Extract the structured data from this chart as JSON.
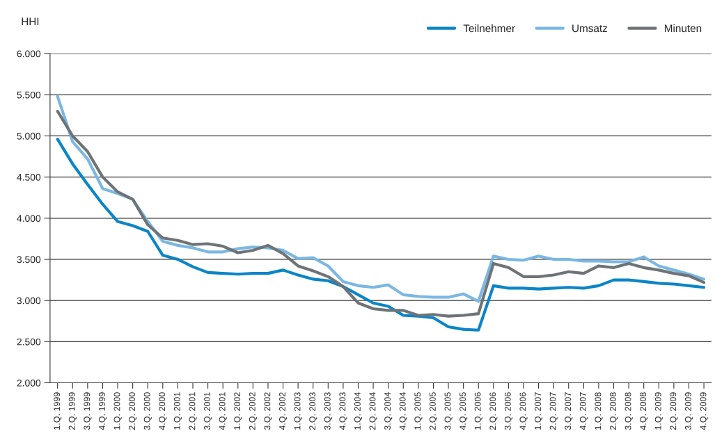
{
  "chart_data": {
    "type": "line",
    "ylabel": "HHI",
    "categories": [
      "1.Q. 1999",
      "2.Q. 1999",
      "3.Q. 1999",
      "4.Q. 1999",
      "1.Q. 2000",
      "2.Q. 2000",
      "3.Q. 2000",
      "4.Q. 2000",
      "1.Q. 2001",
      "2.Q. 2001",
      "3.Q. 2001",
      "4.Q. 2001",
      "1.Q. 2002",
      "2.Q. 2002",
      "3.Q. 2002",
      "4.Q. 2002",
      "1.Q. 2003",
      "2.Q. 2003",
      "3.Q. 2003",
      "4.Q. 2003",
      "1.Q. 2004",
      "2.Q. 2004",
      "3.Q. 2004",
      "4.Q. 2004",
      "1.Q. 2005",
      "2.Q. 2005",
      "3.Q. 2005",
      "4.Q. 2005",
      "1.Q. 2006",
      "2.Q. 2006",
      "3.Q. 2006",
      "4.Q. 2006",
      "1.Q. 2007",
      "2.Q. 2007",
      "3.Q. 2007",
      "4.Q. 2007",
      "1.Q. 2008",
      "2.Q. 2008",
      "3.Q. 2008",
      "4.Q. 2008",
      "1.Q. 2009",
      "2.Q. 2009",
      "3.Q. 2009",
      "4.Q. 2009"
    ],
    "series": [
      {
        "name": "Teilnehmer",
        "color": "#0a85c8",
        "values": [
          4960,
          4660,
          4410,
          4170,
          3960,
          3910,
          3840,
          3550,
          3500,
          3410,
          3340,
          3330,
          3320,
          3330,
          3330,
          3370,
          3310,
          3260,
          3240,
          3170,
          3070,
          2970,
          2930,
          2820,
          2810,
          2790,
          2680,
          2650,
          2640,
          3180,
          3150,
          3150,
          3140,
          3150,
          3160,
          3150,
          3180,
          3250,
          3250,
          3230,
          3210,
          3200,
          3180,
          3160
        ]
      },
      {
        "name": "Umsatz",
        "color": "#7ab7e3",
        "values": [
          5480,
          4930,
          4720,
          4360,
          4300,
          4230,
          3960,
          3720,
          3670,
          3640,
          3590,
          3590,
          3630,
          3650,
          3640,
          3610,
          3510,
          3520,
          3420,
          3230,
          3180,
          3160,
          3190,
          3070,
          3050,
          3040,
          3040,
          3080,
          2990,
          3540,
          3500,
          3490,
          3540,
          3500,
          3500,
          3480,
          3480,
          3470,
          3470,
          3530,
          3420,
          3370,
          3320,
          3260
        ]
      },
      {
        "name": "Minuten",
        "color": "#6e7378",
        "values": [
          5300,
          5000,
          4810,
          4500,
          4320,
          4230,
          3920,
          3760,
          3730,
          3680,
          3690,
          3660,
          3580,
          3610,
          3670,
          3570,
          3420,
          3360,
          3290,
          3170,
          2970,
          2900,
          2880,
          2880,
          2820,
          2830,
          2810,
          2820,
          2840,
          3450,
          3400,
          3290,
          3290,
          3310,
          3350,
          3330,
          3420,
          3400,
          3450,
          3400,
          3370,
          3330,
          3300,
          3220
        ]
      }
    ],
    "ylim": [
      2000,
      6000
    ],
    "yticks": [
      {
        "value": 2000,
        "label": "2.000"
      },
      {
        "value": 2500,
        "label": "2.500"
      },
      {
        "value": 3000,
        "label": "3.000"
      },
      {
        "value": 3500,
        "label": "3.500"
      },
      {
        "value": 4000,
        "label": "4.000"
      },
      {
        "value": 4500,
        "label": "4.500"
      },
      {
        "value": 5000,
        "label": "5.000"
      },
      {
        "value": 5500,
        "label": "5.500"
      },
      {
        "value": 6000,
        "label": "6.000"
      }
    ],
    "grid": "y",
    "legend": "top right",
    "marker": "none",
    "line_style": "solid"
  }
}
